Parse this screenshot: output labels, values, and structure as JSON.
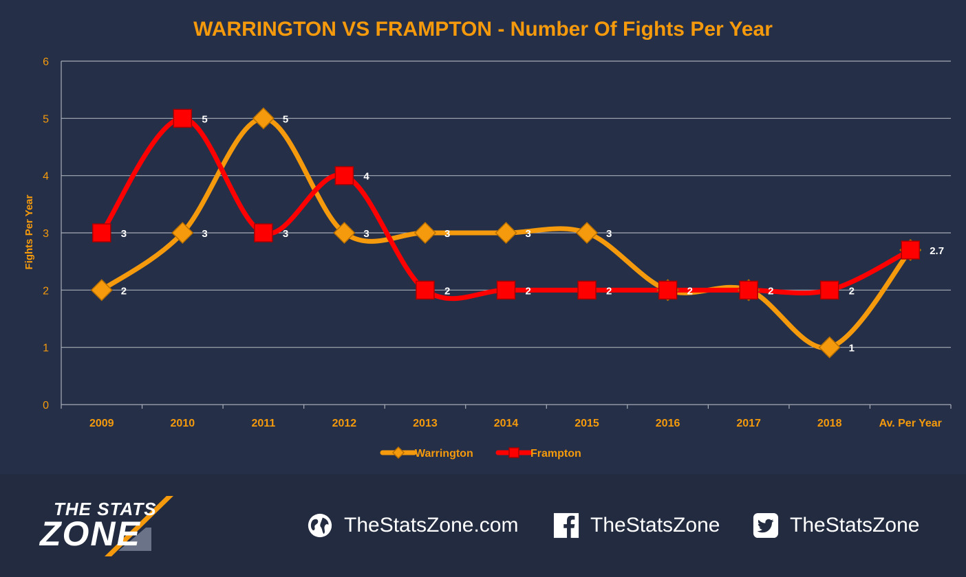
{
  "chart_data": {
    "type": "line",
    "title": "WARRINGTON VS FRAMPTON - Number Of Fights Per Year",
    "ylabel": "Fights Per Year",
    "xlabel": "",
    "categories": [
      "2009",
      "2010",
      "2011",
      "2012",
      "2013",
      "2014",
      "2015",
      "2016",
      "2017",
      "2018",
      "Av. Per Year"
    ],
    "ylim": [
      0,
      6
    ],
    "yticks": [
      0,
      1,
      2,
      3,
      4,
      5,
      6
    ],
    "grid": true,
    "legend_position": "bottom",
    "series": [
      {
        "name": "Warrington",
        "color": "#f59a0c",
        "marker": "diamond",
        "values": [
          2,
          3,
          5,
          3,
          3,
          3,
          3,
          2,
          2,
          1,
          2.7
        ]
      },
      {
        "name": "Frampton",
        "color": "#ff0000",
        "marker": "square",
        "values": [
          3,
          5,
          3,
          4,
          2,
          2,
          2,
          2,
          2,
          2,
          2.7
        ]
      }
    ],
    "data_labels": [
      {
        "series": 0,
        "index": 0,
        "text": "2"
      },
      {
        "series": 0,
        "index": 1,
        "text": "3"
      },
      {
        "series": 0,
        "index": 2,
        "text": "5"
      },
      {
        "series": 0,
        "index": 3,
        "text": "3"
      },
      {
        "series": 0,
        "index": 4,
        "text": "3"
      },
      {
        "series": 0,
        "index": 5,
        "text": "3"
      },
      {
        "series": 0,
        "index": 6,
        "text": "3"
      },
      {
        "series": 0,
        "index": 7,
        "text": "2"
      },
      {
        "series": 0,
        "index": 9,
        "text": "1"
      },
      {
        "series": 1,
        "index": 0,
        "text": "3"
      },
      {
        "series": 1,
        "index": 1,
        "text": "5"
      },
      {
        "series": 1,
        "index": 2,
        "text": "3"
      },
      {
        "series": 1,
        "index": 3,
        "text": "4"
      },
      {
        "series": 1,
        "index": 4,
        "text": "2"
      },
      {
        "series": 1,
        "index": 5,
        "text": "2"
      },
      {
        "series": 1,
        "index": 6,
        "text": "2"
      },
      {
        "series": 1,
        "index": 8,
        "text": "2"
      },
      {
        "series": 1,
        "index": 9,
        "text": "2"
      },
      {
        "series": 1,
        "index": 10,
        "text": "2.7"
      }
    ]
  },
  "colors": {
    "background": "#253048",
    "axis_text": "#f59a0c",
    "grid": "#a8adb8",
    "label": "#ffffff"
  },
  "footer": {
    "logo_top": "THE STATS",
    "logo_bottom": "ZONE",
    "website": "TheStatsZone.com",
    "facebook": "TheStatsZone",
    "twitter": "TheStatsZone",
    "icons": {
      "website": "globe-icon",
      "facebook": "facebook-icon",
      "twitter": "twitter-icon"
    }
  }
}
